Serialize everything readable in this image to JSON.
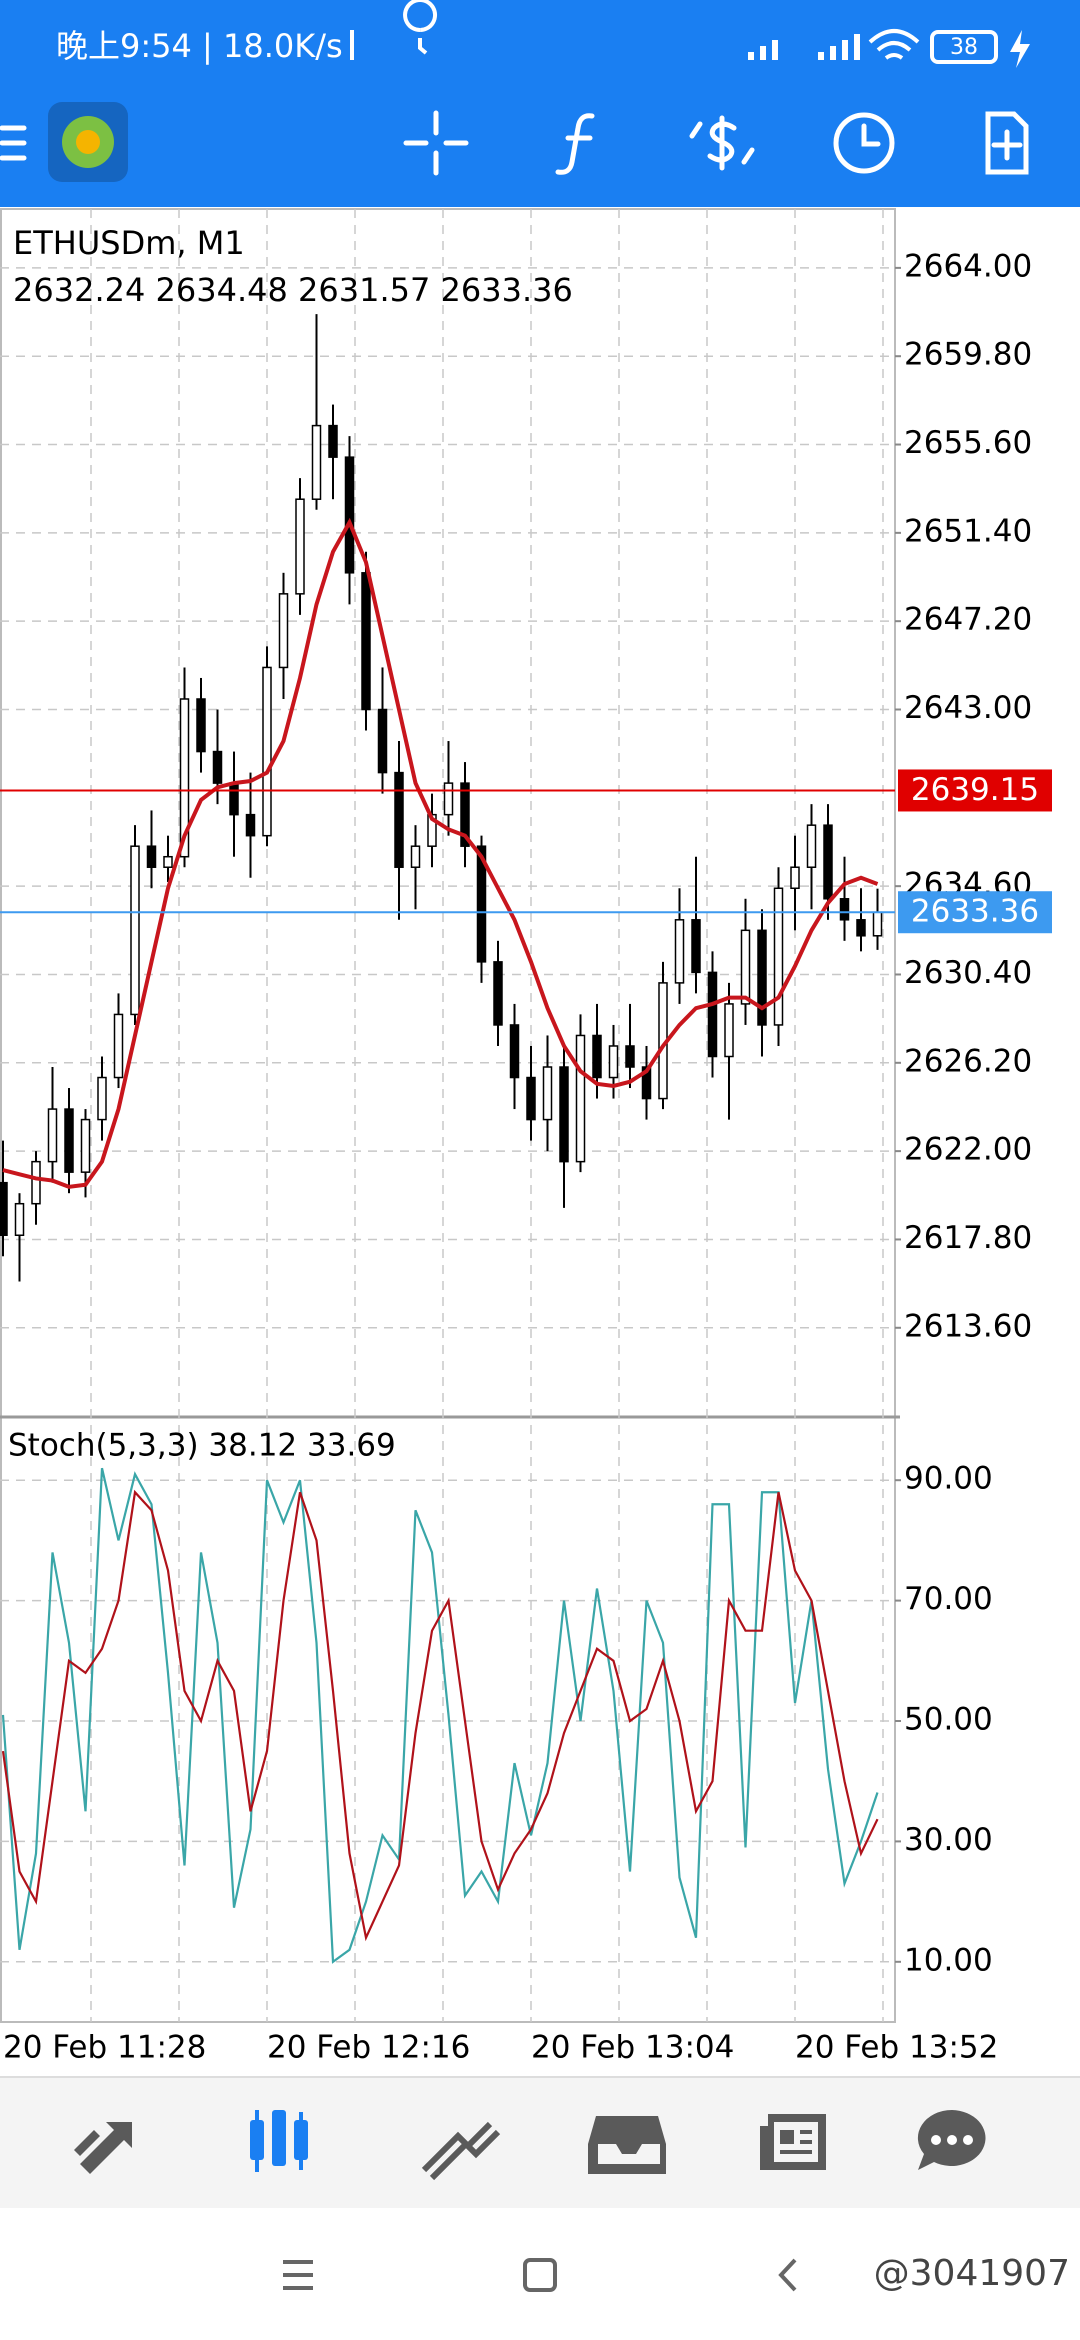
{
  "status_bar": {
    "time": "晚上9:54 | 18.0K/s",
    "battery": "38"
  },
  "watermark": "@3041907",
  "chart_data": [
    {
      "type": "candlestick",
      "title": "ETHUSDm, M1",
      "subtitle": "2632.24 2634.48 2631.57 2633.36",
      "color": "#000000",
      "open": [
        2620.5,
        2618,
        2619.5,
        2621.5,
        2624,
        2621,
        2623.5,
        2625.5,
        2628.5,
        2636.5,
        2635.5,
        2636,
        2643.5,
        2641,
        2639.5,
        2638,
        2637,
        2645,
        2648.5,
        2653,
        2656.5,
        2655,
        2649.5,
        2643,
        2640,
        2635.5,
        2636.5,
        2638,
        2639.5,
        2636.5,
        2631,
        2628,
        2625.5,
        2623.5,
        2626,
        2621.5,
        2627.5,
        2625.5,
        2627,
        2626,
        2624.5,
        2630,
        2633,
        2630.5,
        2626.5,
        2629,
        2632.5,
        2628,
        2634.5,
        2635.5,
        2637.5,
        2634,
        2633,
        2632.24
      ],
      "high": [
        2622.5,
        2620,
        2622,
        2626,
        2625,
        2624,
        2626.5,
        2629.5,
        2637.5,
        2638.2,
        2637,
        2645,
        2644.5,
        2643,
        2641,
        2640,
        2646,
        2649.5,
        2654,
        2661.8,
        2657.5,
        2656,
        2650.5,
        2645,
        2641.5,
        2637.5,
        2639,
        2641.5,
        2640.5,
        2637,
        2632,
        2629,
        2627,
        2627.5,
        2627,
        2628.5,
        2629,
        2628,
        2629,
        2627,
        2631,
        2634.5,
        2636,
        2631.5,
        2630,
        2634,
        2633.5,
        2635.5,
        2637,
        2638.5,
        2638.5,
        2636,
        2634.5,
        2634.48
      ],
      "low": [
        2617,
        2615.8,
        2618.5,
        2620.5,
        2620,
        2619.8,
        2622.5,
        2625,
        2628,
        2634.5,
        2634.8,
        2635.5,
        2640,
        2638.5,
        2636,
        2635,
        2636.5,
        2643.5,
        2647.5,
        2652.5,
        2653,
        2648,
        2642,
        2639,
        2633,
        2633.5,
        2635.5,
        2637,
        2635.5,
        2630,
        2627,
        2624,
        2622.5,
        2622,
        2619.3,
        2621,
        2624.5,
        2624.5,
        2625,
        2623.5,
        2624,
        2629,
        2629.5,
        2625.5,
        2623.5,
        2628,
        2626.5,
        2627,
        2632.5,
        2633.5,
        2633,
        2632,
        2631.5,
        2631.57
      ],
      "close": [
        2618,
        2619.5,
        2621.5,
        2624,
        2621,
        2623.5,
        2625.5,
        2628.5,
        2636.5,
        2635.5,
        2636,
        2643.5,
        2641,
        2639.5,
        2638,
        2637,
        2645,
        2648.5,
        2653,
        2656.5,
        2655,
        2649.5,
        2643,
        2640,
        2635.5,
        2636.5,
        2638,
        2639.5,
        2636.5,
        2631,
        2628,
        2625.5,
        2623.5,
        2626,
        2621.5,
        2627.5,
        2625.5,
        2627,
        2626,
        2624.5,
        2630,
        2633,
        2630.5,
        2626.5,
        2629,
        2632.5,
        2628,
        2634.5,
        2635.5,
        2637.5,
        2634,
        2633,
        2632.24,
        2633.36
      ],
      "overlays": [
        {
          "color": "#c8161d",
          "values": [
            2621.1,
            2620.9,
            2620.7,
            2620.6,
            2620.3,
            2620.4,
            2621.5,
            2624,
            2627.5,
            2631,
            2634.5,
            2637,
            2638.7,
            2639.3,
            2639.5,
            2639.6,
            2640,
            2641.5,
            2644.5,
            2648,
            2650.5,
            2651.9,
            2650,
            2646.5,
            2643,
            2639.5,
            2637.8,
            2637.3,
            2637,
            2636,
            2634.5,
            2633,
            2631,
            2628.8,
            2627,
            2625.8,
            2625.2,
            2625.1,
            2625.3,
            2625.8,
            2627,
            2628,
            2628.8,
            2629,
            2629.3,
            2629.3,
            2628.8,
            2629.3,
            2630.8,
            2632.5,
            2633.8,
            2634.7,
            2635,
            2634.7
          ]
        }
      ],
      "price_lines": [
        {
          "value": 2639.15,
          "color": "#e00000"
        },
        {
          "value": 2633.36,
          "color": "#3d9af0"
        }
      ],
      "ylim": [
        2609.5,
        2666.8
      ],
      "yticks": [
        {
          "value": 2664,
          "label": "2664.00"
        },
        {
          "value": 2659.8,
          "label": "2659.80"
        },
        {
          "value": 2655.6,
          "label": "2655.60"
        },
        {
          "value": 2651.4,
          "label": "2651.40"
        },
        {
          "value": 2647.2,
          "label": "2647.20"
        },
        {
          "value": 2643,
          "label": "2643.00"
        },
        {
          "value": 2634.6,
          "label": "2634.60"
        },
        {
          "value": 2630.4,
          "label": "2630.40"
        },
        {
          "value": 2626.2,
          "label": "2626.20"
        },
        {
          "value": 2622,
          "label": "2622.00"
        },
        {
          "value": 2617.8,
          "label": "2617.80"
        },
        {
          "value": 2613.6,
          "label": "2613.60"
        }
      ],
      "grid": true
    },
    {
      "type": "line",
      "title": "Stoch(5,3,3) 38.12 33.69",
      "categories": [
        "20 Feb 11:28",
        null,
        null,
        null,
        null,
        null,
        null,
        null,
        null,
        null,
        null,
        null,
        null,
        null,
        null,
        null,
        "20 Feb 12:16",
        null,
        null,
        null,
        null,
        null,
        null,
        null,
        null,
        null,
        null,
        null,
        null,
        null,
        null,
        null,
        "20 Feb 13:04",
        null,
        null,
        null,
        null,
        null,
        null,
        null,
        null,
        null,
        null,
        null,
        null,
        null,
        null,
        null,
        "20 Feb 13:52",
        null,
        null,
        null,
        null,
        null
      ],
      "series": [
        {
          "color": "#3aa6a8",
          "values": [
            51,
            12,
            28,
            78,
            63,
            35,
            92,
            80,
            91,
            86,
            58,
            26,
            78,
            63,
            19,
            32,
            90,
            83,
            90,
            63,
            10,
            12,
            20,
            31,
            27,
            85,
            78,
            51,
            21,
            25,
            20,
            43,
            31,
            43,
            70,
            50,
            72,
            55,
            25,
            70,
            63,
            24,
            14,
            86,
            86,
            29,
            88,
            88,
            53,
            70,
            42,
            23,
            30,
            38.12
          ]
        },
        {
          "color": "#b0121a",
          "values": [
            45,
            25,
            20,
            40,
            60,
            58,
            62,
            70,
            88,
            85,
            75,
            55,
            50,
            60,
            55,
            35,
            45,
            70,
            88,
            80,
            55,
            28,
            14,
            20,
            26,
            48,
            65,
            70,
            50,
            30,
            22,
            28,
            32,
            38,
            48,
            55,
            62,
            60,
            50,
            52,
            60,
            50,
            35,
            40,
            70,
            65,
            65,
            88,
            75,
            70,
            55,
            40,
            28,
            33.69
          ]
        }
      ],
      "ylim": [
        0,
        100
      ],
      "yticks": [
        {
          "value": 10,
          "label": "10.00"
        },
        {
          "value": 30,
          "label": "30.00"
        },
        {
          "value": 50,
          "label": "50.00"
        },
        {
          "value": 70,
          "label": "70.00"
        },
        {
          "value": 90,
          "label": "90.00"
        }
      ],
      "grid": true
    }
  ]
}
